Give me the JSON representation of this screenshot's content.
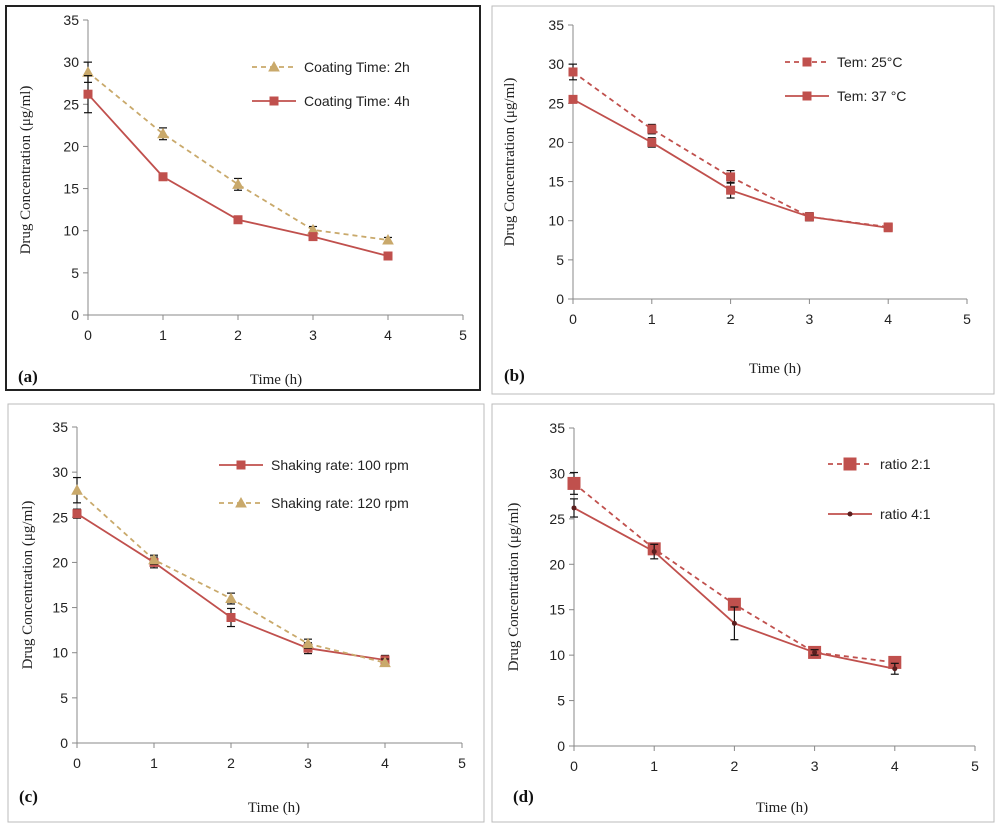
{
  "chart_data": [
    {
      "type": "line",
      "panel_label": "(a)",
      "xlabel": "Time (h)",
      "ylabel": "Drug Concentration (μg/ml)",
      "xlim": [
        0,
        5
      ],
      "ylim": [
        0,
        35
      ],
      "xticks": [
        0,
        1,
        2,
        3,
        4,
        5
      ],
      "yticks": [
        0,
        5,
        10,
        15,
        20,
        25,
        30,
        35
      ],
      "legend_position": "top-right",
      "grid": false,
      "series": [
        {
          "name": "Coating Time:  2h",
          "color": "#c9a96b",
          "dashed": true,
          "marker": "triangle",
          "x": [
            0,
            1,
            2,
            3,
            4
          ],
          "y": [
            28.8,
            21.5,
            15.5,
            10.1,
            8.9
          ],
          "err": [
            1.2,
            0.7,
            0.7,
            0.4,
            0.3
          ]
        },
        {
          "name": "Coating Time:  4h",
          "color": "#c0504d",
          "dashed": false,
          "marker": "square",
          "x": [
            0,
            1,
            2,
            3,
            4
          ],
          "y": [
            26.2,
            16.4,
            11.3,
            9.3,
            7.0
          ],
          "err": [
            2.2,
            0.4,
            0.3,
            0.4,
            0.2
          ]
        }
      ]
    },
    {
      "type": "line",
      "panel_label": "(b)",
      "xlabel": "Time (h)",
      "ylabel": "Drug Concentration (μg/ml)",
      "xlim": [
        0,
        5
      ],
      "ylim": [
        0,
        35
      ],
      "xticks": [
        0,
        1,
        2,
        3,
        4,
        5
      ],
      "yticks": [
        0,
        5,
        10,
        15,
        20,
        25,
        30,
        35
      ],
      "legend_position": "top-right",
      "grid": false,
      "series": [
        {
          "name": "Tem: 25°C",
          "color": "#c0504d",
          "dashed": true,
          "marker": "square",
          "x": [
            0,
            1,
            2,
            3,
            4
          ],
          "y": [
            29.0,
            21.7,
            15.6,
            10.5,
            9.2
          ],
          "err": [
            1.0,
            0.6,
            0.8,
            0.5,
            0.4
          ]
        },
        {
          "name": "Tem: 37 °C",
          "color": "#c0504d",
          "dashed": false,
          "marker": "square",
          "x": [
            0,
            1,
            2,
            3,
            4
          ],
          "y": [
            25.5,
            20.0,
            13.9,
            10.5,
            9.1
          ],
          "err": [
            0.3,
            0.6,
            1.0,
            0.5,
            0.3
          ]
        }
      ]
    },
    {
      "type": "line",
      "panel_label": "(c)",
      "xlabel": "Time (h)",
      "ylabel": "Drug Concentration (μg/ml)",
      "xlim": [
        0,
        5
      ],
      "ylim": [
        0,
        35
      ],
      "xticks": [
        0,
        1,
        2,
        3,
        4,
        5
      ],
      "yticks": [
        0,
        5,
        10,
        15,
        20,
        25,
        30,
        35
      ],
      "legend_position": "top-right",
      "grid": false,
      "series": [
        {
          "name": "Shaking rate:  100 rpm",
          "color": "#c0504d",
          "dashed": false,
          "marker": "square",
          "x": [
            0,
            1,
            2,
            3,
            4
          ],
          "y": [
            25.4,
            20.0,
            13.9,
            10.5,
            9.2
          ],
          "err": [
            0.5,
            0.6,
            1.0,
            0.6,
            0.5
          ]
        },
        {
          "name": "Shaking rate:  120 rpm",
          "color": "#c9a96b",
          "dashed": true,
          "marker": "triangle",
          "x": [
            0,
            1,
            2,
            3,
            4
          ],
          "y": [
            28.0,
            20.3,
            16.0,
            11.0,
            8.9
          ],
          "err": [
            1.4,
            0.5,
            0.6,
            0.5,
            0.4
          ]
        }
      ]
    },
    {
      "type": "line",
      "panel_label": "(d)",
      "xlabel": "Time (h)",
      "ylabel": "Drug Concentration (μg/ml)",
      "xlim": [
        0,
        5
      ],
      "ylim": [
        0,
        35
      ],
      "xticks": [
        0,
        1,
        2,
        3,
        4,
        5
      ],
      "yticks": [
        0,
        5,
        10,
        15,
        20,
        25,
        30,
        35
      ],
      "legend_position": "top-right",
      "grid": false,
      "series": [
        {
          "name": "ratio 2:1",
          "color": "#c0504d",
          "dashed": true,
          "marker": "bigsquare",
          "x": [
            0,
            1,
            2,
            3,
            4
          ],
          "y": [
            28.9,
            21.7,
            15.6,
            10.3,
            9.2
          ],
          "err": [
            1.2,
            0.5,
            0.5,
            0.4,
            0.4
          ]
        },
        {
          "name": "ratio 4:1",
          "color": "#c0504d",
          "dashed": false,
          "marker": "dot",
          "x": [
            0,
            1,
            2,
            3,
            4
          ],
          "y": [
            26.2,
            21.4,
            13.5,
            10.3,
            8.5
          ],
          "err": [
            1.0,
            0.8,
            1.8,
            0.3,
            0.6
          ]
        }
      ]
    }
  ]
}
